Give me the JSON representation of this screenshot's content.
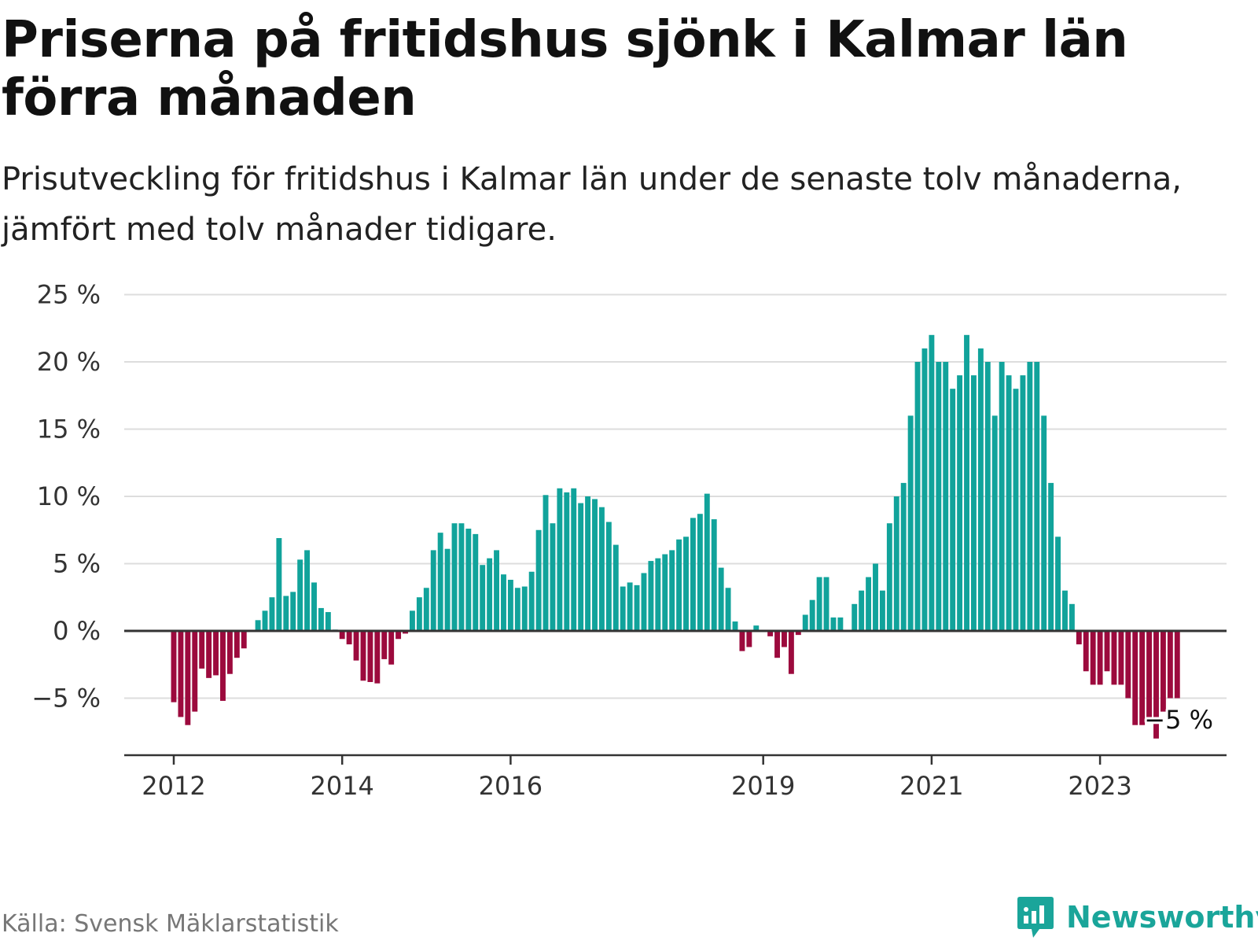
{
  "title": "Priserna på fritidshus sjönk i Kalmar län förra månaden",
  "subtitle": "Prisutveckling för fritidshus i Kalmar län under de senaste tolv månaderna, jämfört med tolv månader tidigare.",
  "source": "Källa: Svensk Mäklarstatistik",
  "brand": {
    "name": "Newsworthy",
    "icon": "newsworthy-logo-icon"
  },
  "colors": {
    "positive": "#11a39b",
    "negative": "#9c0a3d",
    "grid": "#dddddd",
    "axis": "#333333",
    "brand": "#1aa59a"
  },
  "chart_data": {
    "type": "bar",
    "ylabel": "",
    "xlabel": "",
    "ylim": [
      -9,
      25
    ],
    "yticks": [
      {
        "value": 25,
        "label": "25 %"
      },
      {
        "value": 20,
        "label": "20 %"
      },
      {
        "value": 15,
        "label": "15 %"
      },
      {
        "value": 10,
        "label": "10 %"
      },
      {
        "value": 5,
        "label": "5 %"
      },
      {
        "value": 0,
        "label": "0 %"
      },
      {
        "value": -5,
        "label": "−5 %"
      }
    ],
    "xticks": [
      {
        "index": 0,
        "label": "2012"
      },
      {
        "index": 24,
        "label": "2014"
      },
      {
        "index": 48,
        "label": "2016"
      },
      {
        "index": 84,
        "label": "2019"
      },
      {
        "index": 108,
        "label": "2021"
      },
      {
        "index": 132,
        "label": "2023"
      }
    ],
    "end_label": "−5 %",
    "values": [
      -5.3,
      -6.4,
      -7.0,
      -6.0,
      -2.8,
      -3.5,
      -3.3,
      -5.2,
      -3.2,
      -2.0,
      -1.3,
      0,
      0.8,
      1.5,
      2.5,
      6.9,
      2.6,
      2.9,
      5.3,
      6.0,
      3.6,
      1.7,
      1.4,
      0.1,
      -0.6,
      -1.0,
      -2.2,
      -3.7,
      -3.8,
      -3.9,
      -2.1,
      -2.5,
      -0.6,
      -0.2,
      1.5,
      2.5,
      3.2,
      6.0,
      7.3,
      6.1,
      8.0,
      8.0,
      7.6,
      7.2,
      4.9,
      5.4,
      6.0,
      4.2,
      3.8,
      3.2,
      3.3,
      4.4,
      7.5,
      10.1,
      8.0,
      10.6,
      10.3,
      10.6,
      9.5,
      10.0,
      9.8,
      9.2,
      8.1,
      6.4,
      3.3,
      3.6,
      3.4,
      4.3,
      5.2,
      5.4,
      5.7,
      6.0,
      6.8,
      7.0,
      8.4,
      8.7,
      10.2,
      8.3,
      4.7,
      3.2,
      0.7,
      -1.5,
      -1.2,
      0.4,
      0,
      -0.4,
      -2.0,
      -1.2,
      -3.2,
      -0.3,
      1.2,
      2.3,
      4.0,
      4.0,
      1.0,
      1.0,
      0,
      2.0,
      3.0,
      4.0,
      5.0,
      3.0,
      8.0,
      10.0,
      11.0,
      16.0,
      20.0,
      21.0,
      22.0,
      20.0,
      20.0,
      18.0,
      19.0,
      22.0,
      19.0,
      21.0,
      20.0,
      16.0,
      20.0,
      19.0,
      18.0,
      19.0,
      20.0,
      20.0,
      16.0,
      11.0,
      7.0,
      3.0,
      2.0,
      -1.0,
      -3.0,
      -4.0,
      -4.0,
      -3.0,
      -4.0,
      -4.0,
      -5.0,
      -7.0,
      -7.0,
      -6.5,
      -8.0,
      -6.0,
      -5.0,
      -5.0
    ]
  }
}
